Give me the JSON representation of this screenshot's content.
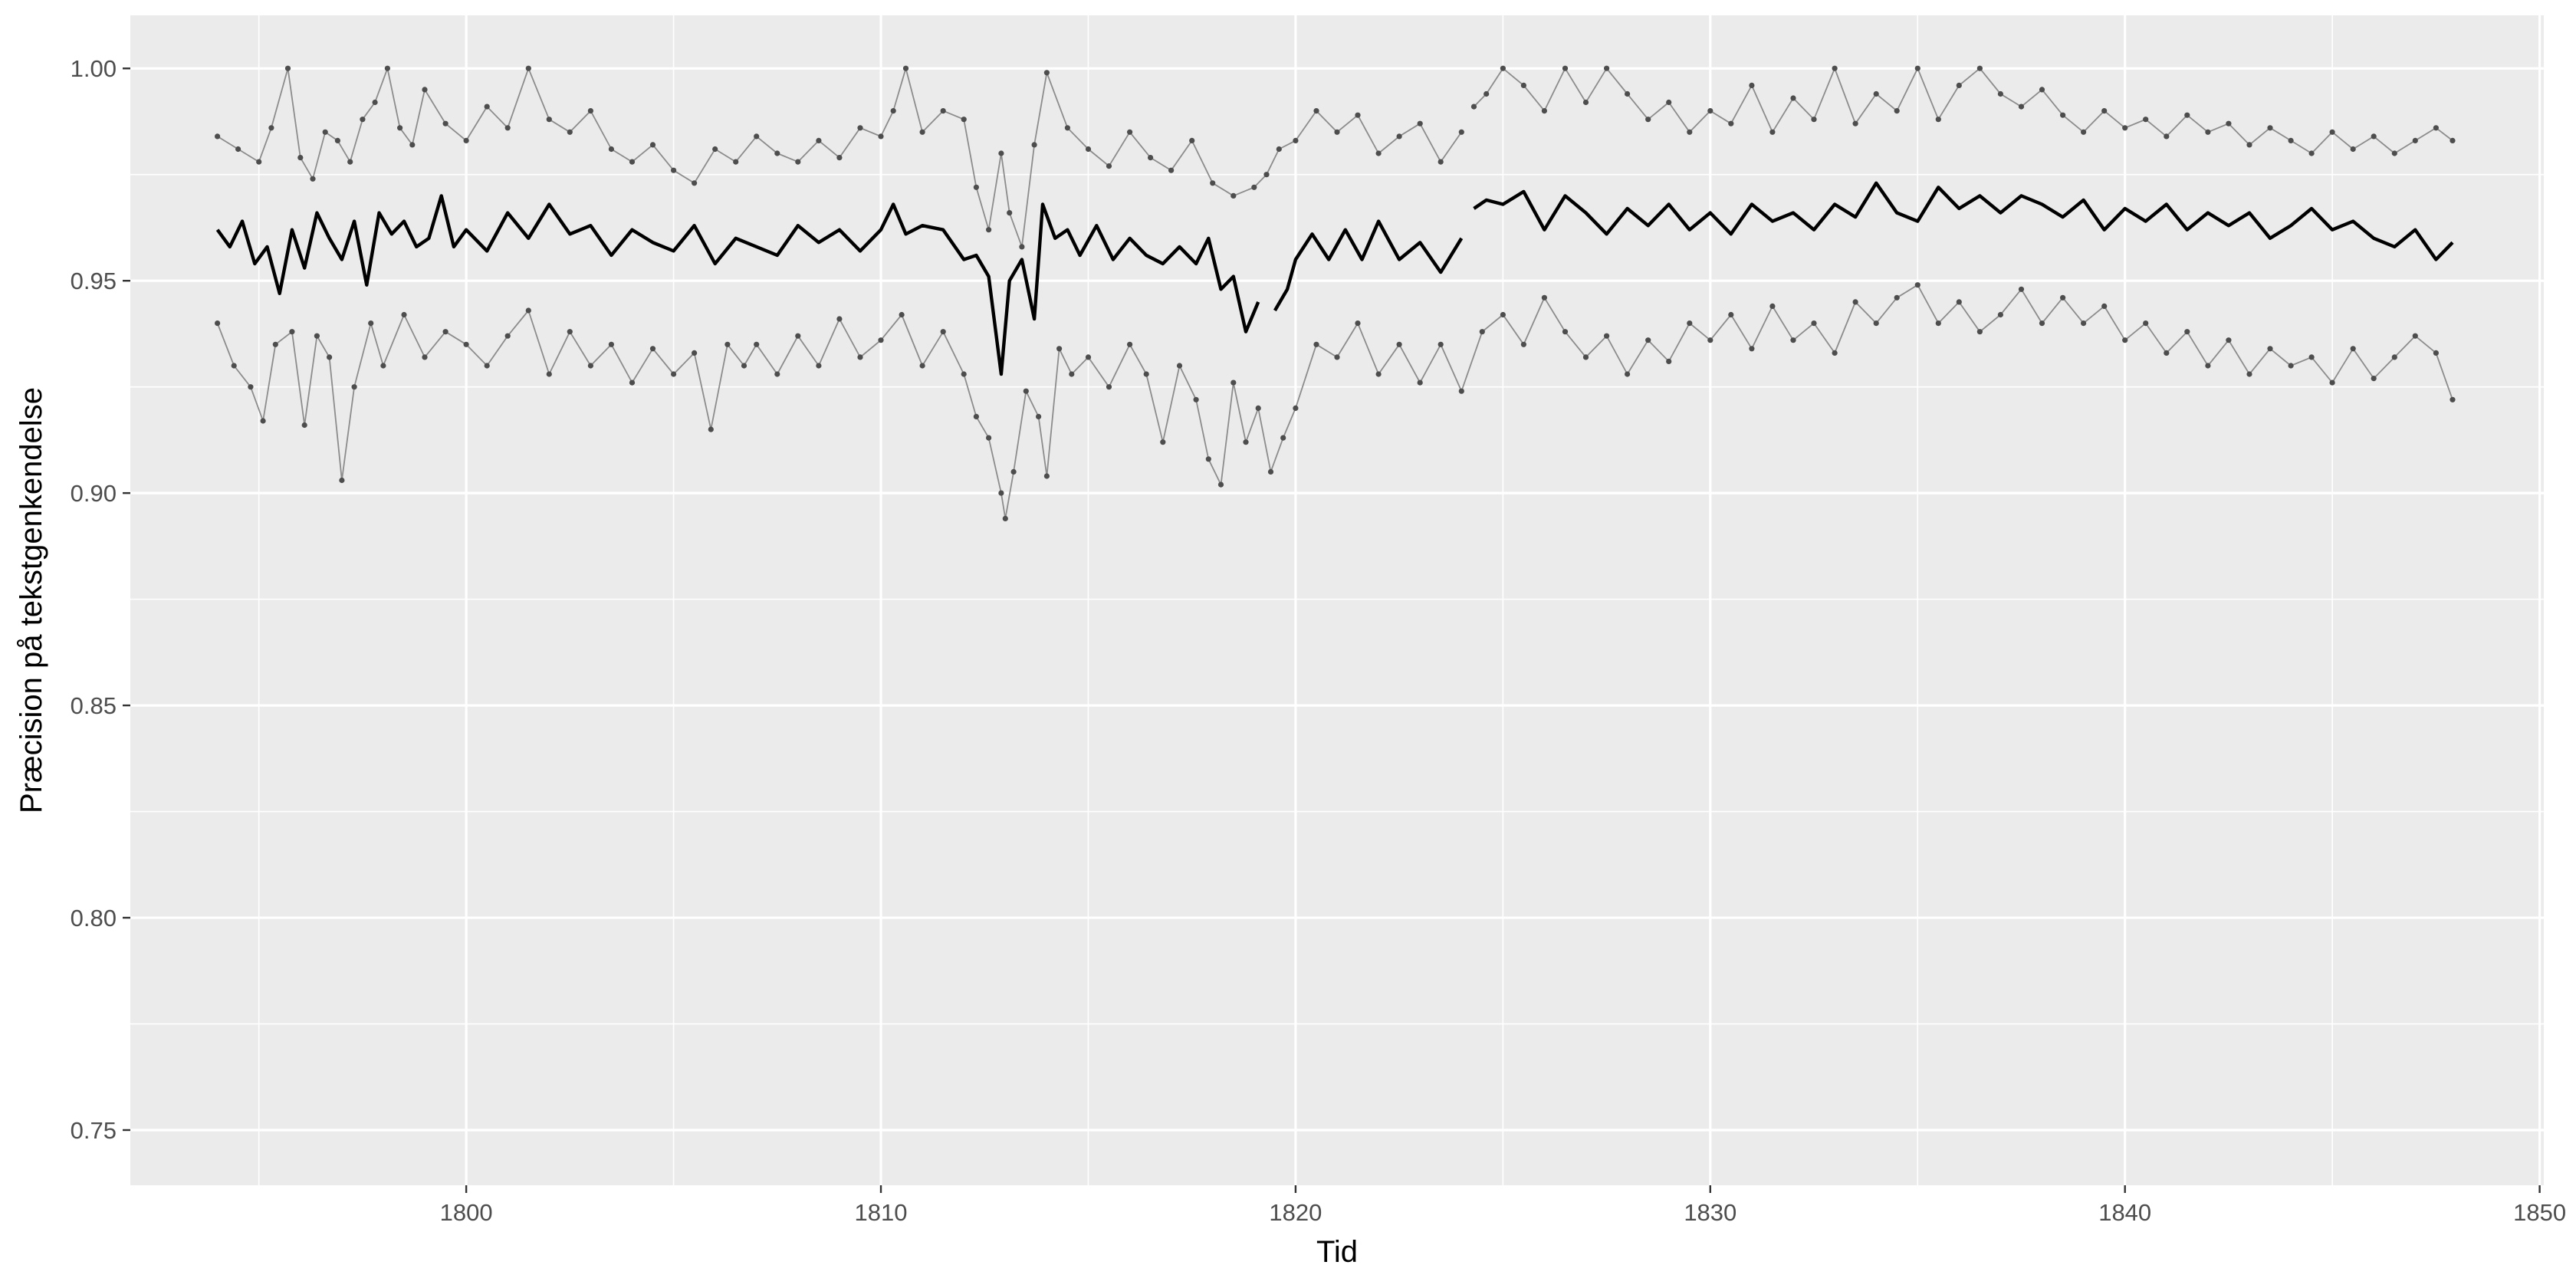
{
  "chart_data": {
    "type": "line",
    "title": "",
    "xlabel": "Tid",
    "ylabel": "Præcision på tekstgenkendelse",
    "xlim": [
      1791.9,
      1850.1
    ],
    "ylim": [
      0.737,
      1.0125
    ],
    "x_ticks": [
      1800,
      1810,
      1820,
      1830,
      1840,
      1850
    ],
    "x_tick_labels": [
      "1800",
      "1810",
      "1820",
      "1830",
      "1840",
      "1850"
    ],
    "y_ticks": [
      0.75,
      0.8,
      0.85,
      0.9,
      0.95,
      1.0
    ],
    "y_tick_labels": [
      "0.75",
      "0.80",
      "0.85",
      "0.90",
      "0.95",
      "1.00"
    ],
    "grid": true,
    "legend": "none",
    "colors": {
      "panel": "#ebebeb",
      "grid": "#ffffff",
      "median_line": "#000000",
      "band_line": "#8c8c8c",
      "band_point": "#4d4d4d"
    },
    "series": [
      {
        "role": "upper",
        "style": "thin-line-with-points",
        "gap_after_x": [
          1824.0
        ],
        "x": [
          1794.0,
          1794.5,
          1795.0,
          1795.3,
          1795.7,
          1796.0,
          1796.3,
          1796.6,
          1796.9,
          1797.2,
          1797.5,
          1797.8,
          1798.1,
          1798.4,
          1798.7,
          1799.0,
          1799.5,
          1800.0,
          1800.5,
          1801.0,
          1801.5,
          1802.0,
          1802.5,
          1803.0,
          1803.5,
          1804.0,
          1804.5,
          1805.0,
          1805.5,
          1806.0,
          1806.5,
          1807.0,
          1807.5,
          1808.0,
          1808.5,
          1809.0,
          1809.5,
          1810.0,
          1810.3,
          1810.6,
          1811.0,
          1811.5,
          1812.0,
          1812.3,
          1812.6,
          1812.9,
          1813.1,
          1813.4,
          1813.7,
          1814.0,
          1814.5,
          1815.0,
          1815.5,
          1816.0,
          1816.5,
          1817.0,
          1817.5,
          1818.0,
          1818.5,
          1819.0,
          1819.3,
          1819.6,
          1820.0,
          1820.5,
          1821.0,
          1821.5,
          1822.0,
          1822.5,
          1823.0,
          1823.5,
          1824.0,
          1824.3,
          1824.6,
          1825.0,
          1825.5,
          1826.0,
          1826.5,
          1827.0,
          1827.5,
          1828.0,
          1828.5,
          1829.0,
          1829.5,
          1830.0,
          1830.5,
          1831.0,
          1831.5,
          1832.0,
          1832.5,
          1833.0,
          1833.5,
          1834.0,
          1834.5,
          1835.0,
          1835.5,
          1836.0,
          1836.5,
          1837.0,
          1837.5,
          1838.0,
          1838.5,
          1839.0,
          1839.5,
          1840.0,
          1840.5,
          1841.0,
          1841.5,
          1842.0,
          1842.5,
          1843.0,
          1843.5,
          1844.0,
          1844.5,
          1845.0,
          1845.5,
          1846.0,
          1846.5,
          1847.0,
          1847.5,
          1847.9
        ],
        "y": [
          0.984,
          0.981,
          0.978,
          0.986,
          1.0,
          0.979,
          0.974,
          0.985,
          0.983,
          0.978,
          0.988,
          0.992,
          1.0,
          0.986,
          0.982,
          0.995,
          0.987,
          0.983,
          0.991,
          0.986,
          1.0,
          0.988,
          0.985,
          0.99,
          0.981,
          0.978,
          0.982,
          0.976,
          0.973,
          0.981,
          0.978,
          0.984,
          0.98,
          0.978,
          0.983,
          0.979,
          0.986,
          0.984,
          0.99,
          1.0,
          0.985,
          0.99,
          0.988,
          0.972,
          0.962,
          0.98,
          0.966,
          0.958,
          0.982,
          0.999,
          0.986,
          0.981,
          0.977,
          0.985,
          0.979,
          0.976,
          0.983,
          0.973,
          0.97,
          0.972,
          0.975,
          0.981,
          0.983,
          0.99,
          0.985,
          0.989,
          0.98,
          0.984,
          0.987,
          0.978,
          0.985,
          0.991,
          0.994,
          1.0,
          0.996,
          0.99,
          1.0,
          0.992,
          1.0,
          0.994,
          0.988,
          0.992,
          0.985,
          0.99,
          0.987,
          0.996,
          0.985,
          0.993,
          0.988,
          1.0,
          0.987,
          0.994,
          0.99,
          1.0,
          0.988,
          0.996,
          1.0,
          0.994,
          0.991,
          0.995,
          0.989,
          0.985,
          0.99,
          0.986,
          0.988,
          0.984,
          0.989,
          0.985,
          0.987,
          0.982,
          0.986,
          0.983,
          0.98,
          0.985,
          0.981,
          0.984,
          0.98,
          0.983,
          0.986,
          0.983
        ]
      },
      {
        "role": "median",
        "style": "thick-line",
        "gap_after_x": [
          1819.1,
          1824.0
        ],
        "x": [
          1794.0,
          1794.3,
          1794.6,
          1794.9,
          1795.2,
          1795.5,
          1795.8,
          1796.1,
          1796.4,
          1796.7,
          1797.0,
          1797.3,
          1797.6,
          1797.9,
          1798.2,
          1798.5,
          1798.8,
          1799.1,
          1799.4,
          1799.7,
          1800.0,
          1800.5,
          1801.0,
          1801.5,
          1802.0,
          1802.5,
          1803.0,
          1803.5,
          1804.0,
          1804.5,
          1805.0,
          1805.5,
          1806.0,
          1806.5,
          1807.0,
          1807.5,
          1808.0,
          1808.5,
          1809.0,
          1809.5,
          1810.0,
          1810.3,
          1810.6,
          1811.0,
          1811.5,
          1812.0,
          1812.3,
          1812.6,
          1812.9,
          1813.1,
          1813.4,
          1813.7,
          1813.9,
          1814.2,
          1814.5,
          1814.8,
          1815.2,
          1815.6,
          1816.0,
          1816.4,
          1816.8,
          1817.2,
          1817.6,
          1817.9,
          1818.2,
          1818.5,
          1818.8,
          1819.1,
          1819.5,
          1819.8,
          1820.0,
          1820.4,
          1820.8,
          1821.2,
          1821.6,
          1822.0,
          1822.5,
          1823.0,
          1823.5,
          1824.0,
          1824.3,
          1824.6,
          1825.0,
          1825.5,
          1826.0,
          1826.5,
          1827.0,
          1827.5,
          1828.0,
          1828.5,
          1829.0,
          1829.5,
          1830.0,
          1830.5,
          1831.0,
          1831.5,
          1832.0,
          1832.5,
          1833.0,
          1833.5,
          1834.0,
          1834.5,
          1835.0,
          1835.5,
          1836.0,
          1836.5,
          1837.0,
          1837.5,
          1838.0,
          1838.5,
          1839.0,
          1839.5,
          1840.0,
          1840.5,
          1841.0,
          1841.5,
          1842.0,
          1842.5,
          1843.0,
          1843.5,
          1844.0,
          1844.5,
          1845.0,
          1845.5,
          1846.0,
          1846.5,
          1847.0,
          1847.5,
          1847.9
        ],
        "y": [
          0.962,
          0.958,
          0.964,
          0.954,
          0.958,
          0.947,
          0.962,
          0.953,
          0.966,
          0.96,
          0.955,
          0.964,
          0.949,
          0.966,
          0.961,
          0.964,
          0.958,
          0.96,
          0.97,
          0.958,
          0.962,
          0.957,
          0.966,
          0.96,
          0.968,
          0.961,
          0.963,
          0.956,
          0.962,
          0.959,
          0.957,
          0.963,
          0.954,
          0.96,
          0.958,
          0.956,
          0.963,
          0.959,
          0.962,
          0.957,
          0.962,
          0.968,
          0.961,
          0.963,
          0.962,
          0.955,
          0.956,
          0.951,
          0.928,
          0.95,
          0.955,
          0.941,
          0.968,
          0.96,
          0.962,
          0.956,
          0.963,
          0.955,
          0.96,
          0.956,
          0.954,
          0.958,
          0.954,
          0.96,
          0.948,
          0.951,
          0.938,
          0.945,
          0.943,
          0.948,
          0.955,
          0.961,
          0.955,
          0.962,
          0.955,
          0.964,
          0.955,
          0.959,
          0.952,
          0.96,
          0.967,
          0.969,
          0.968,
          0.971,
          0.962,
          0.97,
          0.966,
          0.961,
          0.967,
          0.963,
          0.968,
          0.962,
          0.966,
          0.961,
          0.968,
          0.964,
          0.966,
          0.962,
          0.968,
          0.965,
          0.973,
          0.966,
          0.964,
          0.972,
          0.967,
          0.97,
          0.966,
          0.97,
          0.968,
          0.965,
          0.969,
          0.962,
          0.967,
          0.964,
          0.968,
          0.962,
          0.966,
          0.963,
          0.966,
          0.96,
          0.963,
          0.967,
          0.962,
          0.964,
          0.96,
          0.958,
          0.962,
          0.955,
          0.959
        ]
      },
      {
        "role": "lower",
        "style": "thin-line-with-points",
        "gap_after_x": [],
        "x": [
          1794.0,
          1794.4,
          1794.8,
          1795.1,
          1795.4,
          1795.8,
          1796.1,
          1796.4,
          1796.7,
          1797.0,
          1797.3,
          1797.7,
          1798.0,
          1798.5,
          1799.0,
          1799.5,
          1800.0,
          1800.5,
          1801.0,
          1801.5,
          1802.0,
          1802.5,
          1803.0,
          1803.5,
          1804.0,
          1804.5,
          1805.0,
          1805.5,
          1805.9,
          1806.3,
          1806.7,
          1807.0,
          1807.5,
          1808.0,
          1808.5,
          1809.0,
          1809.5,
          1810.0,
          1810.5,
          1811.0,
          1811.5,
          1812.0,
          1812.3,
          1812.6,
          1812.9,
          1813.0,
          1813.2,
          1813.5,
          1813.8,
          1814.0,
          1814.3,
          1814.6,
          1815.0,
          1815.5,
          1816.0,
          1816.4,
          1816.8,
          1817.2,
          1817.6,
          1817.9,
          1818.2,
          1818.5,
          1818.8,
          1819.1,
          1819.4,
          1819.7,
          1820.0,
          1820.5,
          1821.0,
          1821.5,
          1822.0,
          1822.5,
          1823.0,
          1823.5,
          1824.0,
          1824.5,
          1825.0,
          1825.5,
          1826.0,
          1826.5,
          1827.0,
          1827.5,
          1828.0,
          1828.5,
          1829.0,
          1829.5,
          1830.0,
          1830.5,
          1831.0,
          1831.5,
          1832.0,
          1832.5,
          1833.0,
          1833.5,
          1834.0,
          1834.5,
          1835.0,
          1835.5,
          1836.0,
          1836.5,
          1837.0,
          1837.5,
          1838.0,
          1838.5,
          1839.0,
          1839.5,
          1840.0,
          1840.5,
          1841.0,
          1841.5,
          1842.0,
          1842.5,
          1843.0,
          1843.5,
          1844.0,
          1844.5,
          1845.0,
          1845.5,
          1846.0,
          1846.5,
          1847.0,
          1847.5,
          1847.9
        ],
        "y": [
          0.94,
          0.93,
          0.925,
          0.917,
          0.935,
          0.938,
          0.916,
          0.937,
          0.932,
          0.903,
          0.925,
          0.94,
          0.93,
          0.942,
          0.932,
          0.938,
          0.935,
          0.93,
          0.937,
          0.943,
          0.928,
          0.938,
          0.93,
          0.935,
          0.926,
          0.934,
          0.928,
          0.933,
          0.915,
          0.935,
          0.93,
          0.935,
          0.928,
          0.937,
          0.93,
          0.941,
          0.932,
          0.936,
          0.942,
          0.93,
          0.938,
          0.928,
          0.918,
          0.913,
          0.9,
          0.894,
          0.905,
          0.924,
          0.918,
          0.904,
          0.934,
          0.928,
          0.932,
          0.925,
          0.935,
          0.928,
          0.912,
          0.93,
          0.922,
          0.908,
          0.902,
          0.926,
          0.912,
          0.92,
          0.905,
          0.913,
          0.92,
          0.935,
          0.932,
          0.94,
          0.928,
          0.935,
          0.926,
          0.935,
          0.924,
          0.938,
          0.942,
          0.935,
          0.946,
          0.938,
          0.932,
          0.937,
          0.928,
          0.936,
          0.931,
          0.94,
          0.936,
          0.942,
          0.934,
          0.944,
          0.936,
          0.94,
          0.933,
          0.945,
          0.94,
          0.946,
          0.949,
          0.94,
          0.945,
          0.938,
          0.942,
          0.948,
          0.94,
          0.946,
          0.94,
          0.944,
          0.936,
          0.94,
          0.933,
          0.938,
          0.93,
          0.936,
          0.928,
          0.934,
          0.93,
          0.932,
          0.926,
          0.934,
          0.927,
          0.932,
          0.937,
          0.933,
          0.922
        ]
      }
    ]
  }
}
